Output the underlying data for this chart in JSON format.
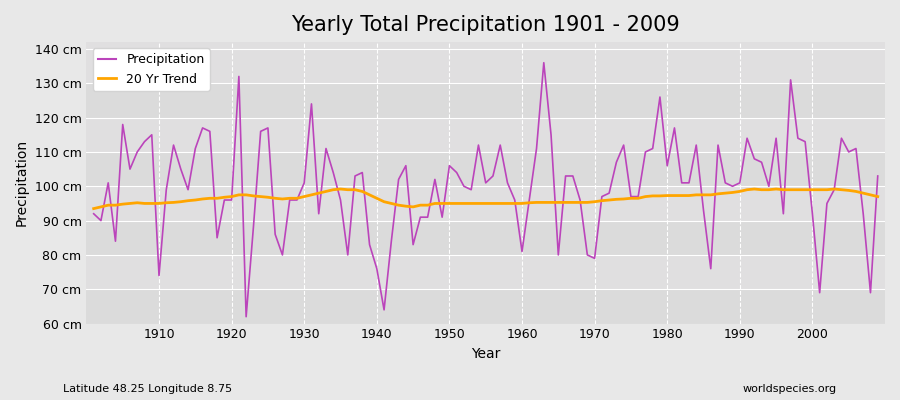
{
  "title": "Yearly Total Precipitation 1901 - 2009",
  "xlabel": "Year",
  "ylabel": "Precipitation",
  "subtitle": "Latitude 48.25 Longitude 8.75",
  "watermark": "worldspecies.org",
  "ylim": [
    60,
    142
  ],
  "yticks": [
    60,
    70,
    80,
    90,
    100,
    110,
    120,
    130,
    140
  ],
  "ytick_labels": [
    "60 cm",
    "70 cm",
    "80 cm",
    "90 cm",
    "100 cm",
    "110 cm",
    "120 cm",
    "130 cm",
    "140 cm"
  ],
  "xlim": [
    1900,
    2010
  ],
  "xticks": [
    1910,
    1920,
    1930,
    1940,
    1950,
    1960,
    1970,
    1980,
    1990,
    2000
  ],
  "years": [
    1901,
    1902,
    1903,
    1904,
    1905,
    1906,
    1907,
    1908,
    1909,
    1910,
    1911,
    1912,
    1913,
    1914,
    1915,
    1916,
    1917,
    1918,
    1919,
    1920,
    1921,
    1922,
    1923,
    1924,
    1925,
    1926,
    1927,
    1928,
    1929,
    1930,
    1931,
    1932,
    1933,
    1934,
    1935,
    1936,
    1937,
    1938,
    1939,
    1940,
    1941,
    1942,
    1943,
    1944,
    1945,
    1946,
    1947,
    1948,
    1949,
    1950,
    1951,
    1952,
    1953,
    1954,
    1955,
    1956,
    1957,
    1958,
    1959,
    1960,
    1961,
    1962,
    1963,
    1964,
    1965,
    1966,
    1967,
    1968,
    1969,
    1970,
    1971,
    1972,
    1973,
    1974,
    1975,
    1976,
    1977,
    1978,
    1979,
    1980,
    1981,
    1982,
    1983,
    1984,
    1985,
    1986,
    1987,
    1988,
    1989,
    1990,
    1991,
    1992,
    1993,
    1994,
    1995,
    1996,
    1997,
    1998,
    1999,
    2000,
    2001,
    2002,
    2003,
    2004,
    2005,
    2006,
    2007,
    2008,
    2009
  ],
  "precipitation": [
    92,
    90,
    101,
    84,
    118,
    105,
    110,
    113,
    115,
    74,
    99,
    112,
    105,
    99,
    111,
    117,
    116,
    85,
    96,
    96,
    132,
    62,
    88,
    116,
    117,
    86,
    80,
    96,
    96,
    101,
    124,
    92,
    111,
    104,
    96,
    80,
    103,
    104,
    83,
    76,
    64,
    84,
    102,
    106,
    83,
    91,
    91,
    102,
    91,
    106,
    104,
    100,
    99,
    112,
    101,
    103,
    112,
    101,
    96,
    81,
    96,
    111,
    136,
    115,
    80,
    103,
    103,
    96,
    80,
    79,
    97,
    98,
    107,
    112,
    97,
    97,
    110,
    111,
    126,
    106,
    117,
    101,
    101,
    112,
    93,
    76,
    112,
    101,
    100,
    101,
    114,
    108,
    107,
    100,
    114,
    92,
    131,
    114,
    113,
    92,
    69,
    95,
    99,
    114,
    110,
    111,
    92,
    69,
    103
  ],
  "trend": [
    93.5,
    94.0,
    94.5,
    94.5,
    94.8,
    95.0,
    95.2,
    95.0,
    95.0,
    95.0,
    95.2,
    95.3,
    95.5,
    95.8,
    96.0,
    96.3,
    96.5,
    96.5,
    96.8,
    97.0,
    97.5,
    97.5,
    97.2,
    97.0,
    96.8,
    96.5,
    96.3,
    96.5,
    96.5,
    97.0,
    97.5,
    98.0,
    98.5,
    99.0,
    99.2,
    99.0,
    99.0,
    98.5,
    97.5,
    96.5,
    95.5,
    95.0,
    94.5,
    94.2,
    94.0,
    94.5,
    94.5,
    95.0,
    95.0,
    95.0,
    95.0,
    95.0,
    95.0,
    95.0,
    95.0,
    95.0,
    95.0,
    95.0,
    95.0,
    95.0,
    95.2,
    95.3,
    95.3,
    95.3,
    95.3,
    95.3,
    95.3,
    95.3,
    95.3,
    95.5,
    95.8,
    96.0,
    96.2,
    96.3,
    96.5,
    96.5,
    97.0,
    97.2,
    97.2,
    97.3,
    97.3,
    97.3,
    97.3,
    97.5,
    97.5,
    97.5,
    97.8,
    98.0,
    98.2,
    98.5,
    99.0,
    99.2,
    99.0,
    99.0,
    99.2,
    99.0,
    99.0,
    99.0,
    99.0,
    99.0,
    99.0,
    99.0,
    99.2,
    99.0,
    98.8,
    98.5,
    98.0,
    97.5,
    97.0
  ],
  "precip_color": "#bb44bb",
  "trend_color": "#FFA500",
  "bg_color": "#e8e8e8",
  "plot_bg_color": "#e0dfe0",
  "grid_color": "#ffffff",
  "title_fontsize": 15,
  "label_fontsize": 10,
  "tick_fontsize": 9
}
